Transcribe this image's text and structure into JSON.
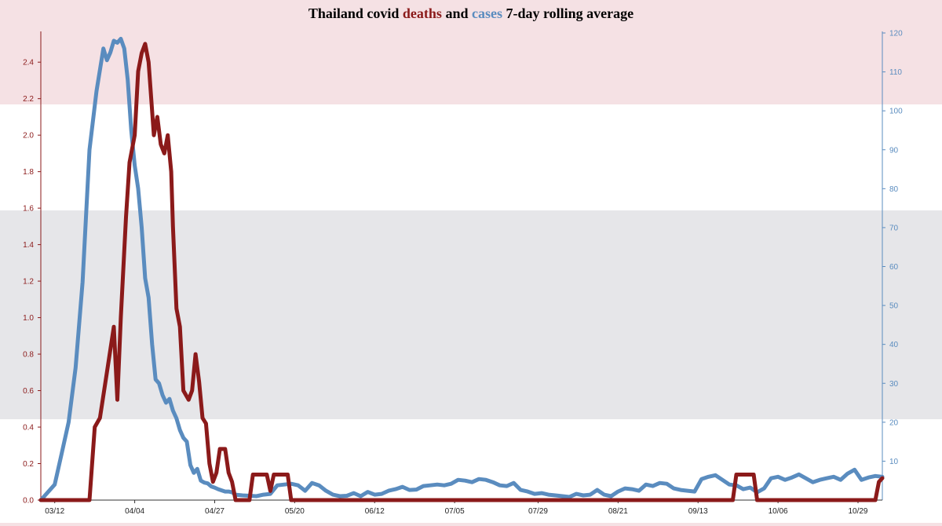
{
  "title": {
    "part1": "Thailand covid ",
    "deaths_word": "deaths",
    "part2": " and ",
    "cases_word": "cases",
    "part3": " 7-day rolling average"
  },
  "colors": {
    "deaths": "#8b1a1a",
    "cases": "#5a8cbf",
    "flag_red": "#f5e1e4",
    "flag_white": "#ffffff",
    "flag_blue": "#e6e6e9"
  },
  "chart_data": {
    "type": "line",
    "title": "Thailand covid deaths and cases 7-day rolling average",
    "xlabel": "",
    "x_tick_labels": [
      "03/12",
      "04/04",
      "04/27",
      "05/20",
      "06/12",
      "07/05",
      "07/29",
      "08/21",
      "09/13",
      "10/06",
      "10/29"
    ],
    "x_tick_days": [
      0,
      23,
      46,
      69,
      92,
      115,
      139,
      162,
      185,
      208,
      231
    ],
    "x_range_days": [
      -4,
      238
    ],
    "left_axis": {
      "series": "deaths",
      "ylim": [
        0,
        2.56
      ],
      "ticks": [
        0.0,
        0.2,
        0.4,
        0.6,
        0.8,
        1.0,
        1.2,
        1.4,
        1.6,
        1.8,
        2.0,
        2.2,
        2.4
      ]
    },
    "right_axis": {
      "series": "cases",
      "ylim": [
        0,
        120
      ],
      "ticks": [
        10,
        20,
        30,
        40,
        50,
        60,
        70,
        80,
        90,
        100,
        110,
        120
      ]
    },
    "series": [
      {
        "name": "deaths",
        "axis": "left",
        "points": [
          [
            -4,
            0
          ],
          [
            10,
            0
          ],
          [
            11.5,
            0.4
          ],
          [
            13,
            0.45
          ],
          [
            15,
            0.7
          ],
          [
            17,
            0.95
          ],
          [
            18,
            0.55
          ],
          [
            19,
            1.0
          ],
          [
            20.5,
            1.55
          ],
          [
            21.5,
            1.85
          ],
          [
            23,
            2.0
          ],
          [
            24,
            2.35
          ],
          [
            25,
            2.45
          ],
          [
            26,
            2.5
          ],
          [
            27,
            2.4
          ],
          [
            28.5,
            2.0
          ],
          [
            29.5,
            2.1
          ],
          [
            30.5,
            1.95
          ],
          [
            31.5,
            1.9
          ],
          [
            32.5,
            2.0
          ],
          [
            33.5,
            1.8
          ],
          [
            34,
            1.5
          ],
          [
            35,
            1.05
          ],
          [
            36,
            0.95
          ],
          [
            37,
            0.6
          ],
          [
            38.5,
            0.55
          ],
          [
            39.5,
            0.6
          ],
          [
            40.5,
            0.8
          ],
          [
            41.5,
            0.65
          ],
          [
            42.5,
            0.45
          ],
          [
            43.5,
            0.42
          ],
          [
            44.5,
            0.2
          ],
          [
            45.5,
            0.1
          ],
          [
            46.5,
            0.15
          ],
          [
            47.5,
            0.28
          ],
          [
            49,
            0.28
          ],
          [
            50,
            0.15
          ],
          [
            51,
            0.1
          ],
          [
            52,
            0.0
          ],
          [
            56,
            0.0
          ],
          [
            57,
            0.14
          ],
          [
            61,
            0.14
          ],
          [
            62,
            0.05
          ],
          [
            63,
            0.14
          ],
          [
            67,
            0.14
          ],
          [
            68,
            0.0
          ],
          [
            195,
            0.0
          ],
          [
            196,
            0.14
          ],
          [
            201,
            0.14
          ],
          [
            202,
            0.0
          ],
          [
            236,
            0.0
          ],
          [
            237,
            0.1
          ],
          [
            238,
            0.12
          ]
        ]
      },
      {
        "name": "cases",
        "axis": "right",
        "points": [
          [
            -4,
            0
          ],
          [
            -2,
            2
          ],
          [
            0,
            4
          ],
          [
            2,
            12
          ],
          [
            4,
            20
          ],
          [
            6,
            34
          ],
          [
            8,
            56
          ],
          [
            10,
            90
          ],
          [
            12,
            105
          ],
          [
            14,
            116
          ],
          [
            15,
            113
          ],
          [
            16,
            115
          ],
          [
            17,
            118
          ],
          [
            18,
            117.5
          ],
          [
            19,
            118.5
          ],
          [
            20,
            116
          ],
          [
            21,
            108
          ],
          [
            22,
            95
          ],
          [
            23,
            86
          ],
          [
            24,
            80
          ],
          [
            25,
            70
          ],
          [
            26,
            57
          ],
          [
            27,
            52
          ],
          [
            28,
            40
          ],
          [
            29,
            31
          ],
          [
            30,
            30
          ],
          [
            31,
            27
          ],
          [
            32,
            25
          ],
          [
            33,
            26
          ],
          [
            34,
            23
          ],
          [
            35,
            21
          ],
          [
            36,
            18
          ],
          [
            37,
            16
          ],
          [
            38,
            15
          ],
          [
            39,
            9
          ],
          [
            40,
            7
          ],
          [
            41,
            8
          ],
          [
            42,
            5
          ],
          [
            43,
            4.5
          ],
          [
            44,
            4.3
          ],
          [
            45,
            3.5
          ],
          [
            46,
            3.2
          ],
          [
            47,
            2.8
          ],
          [
            48,
            2.5
          ],
          [
            49,
            2.2
          ],
          [
            50,
            2.2
          ],
          [
            51,
            2
          ],
          [
            52,
            1.4
          ],
          [
            54,
            1.2
          ],
          [
            56,
            1.1
          ],
          [
            58,
            1.0
          ],
          [
            60,
            1.4
          ],
          [
            62,
            1.6
          ],
          [
            64,
            3.8
          ],
          [
            66,
            4.0
          ],
          [
            68,
            4.2
          ],
          [
            70,
            3.8
          ],
          [
            72,
            2.4
          ],
          [
            74,
            4.4
          ],
          [
            76,
            3.8
          ],
          [
            78,
            2.4
          ],
          [
            80,
            1.4
          ],
          [
            82,
            1.0
          ],
          [
            84,
            1.1
          ],
          [
            86,
            1.8
          ],
          [
            88,
            1.0
          ],
          [
            90,
            2.1
          ],
          [
            92,
            1.4
          ],
          [
            94,
            1.6
          ],
          [
            96,
            2.4
          ],
          [
            98,
            2.8
          ],
          [
            100,
            3.4
          ],
          [
            102,
            2.6
          ],
          [
            104,
            2.7
          ],
          [
            106,
            3.6
          ],
          [
            108,
            3.8
          ],
          [
            110,
            4.0
          ],
          [
            112,
            3.8
          ],
          [
            114,
            4.2
          ],
          [
            116,
            5.2
          ],
          [
            118,
            5.0
          ],
          [
            120,
            4.6
          ],
          [
            122,
            5.4
          ],
          [
            124,
            5.2
          ],
          [
            126,
            4.6
          ],
          [
            128,
            3.8
          ],
          [
            130,
            3.6
          ],
          [
            132,
            4.4
          ],
          [
            134,
            2.6
          ],
          [
            136,
            2.2
          ],
          [
            138,
            1.6
          ],
          [
            140,
            1.8
          ],
          [
            142,
            1.4
          ],
          [
            144,
            1.2
          ],
          [
            146,
            1.0
          ],
          [
            148,
            0.8
          ],
          [
            150,
            1.6
          ],
          [
            152,
            1.2
          ],
          [
            154,
            1.4
          ],
          [
            156,
            2.6
          ],
          [
            158,
            1.4
          ],
          [
            160,
            1.0
          ],
          [
            162,
            2.2
          ],
          [
            164,
            3.0
          ],
          [
            166,
            2.8
          ],
          [
            168,
            2.4
          ],
          [
            170,
            4.0
          ],
          [
            172,
            3.6
          ],
          [
            174,
            4.4
          ],
          [
            176,
            4.2
          ],
          [
            178,
            3.0
          ],
          [
            180,
            2.6
          ],
          [
            182,
            2.4
          ],
          [
            184,
            2.2
          ],
          [
            186,
            5.4
          ],
          [
            188,
            6.0
          ],
          [
            190,
            6.4
          ],
          [
            192,
            5.2
          ],
          [
            194,
            4.0
          ],
          [
            196,
            3.8
          ],
          [
            198,
            2.8
          ],
          [
            200,
            3.2
          ],
          [
            202,
            2.0
          ],
          [
            204,
            3.0
          ],
          [
            206,
            5.6
          ],
          [
            208,
            6.0
          ],
          [
            210,
            5.2
          ],
          [
            212,
            5.8
          ],
          [
            214,
            6.6
          ],
          [
            216,
            5.6
          ],
          [
            218,
            4.6
          ],
          [
            220,
            5.2
          ],
          [
            222,
            5.6
          ],
          [
            224,
            6.0
          ],
          [
            226,
            5.2
          ],
          [
            228,
            6.8
          ],
          [
            230,
            7.8
          ],
          [
            232,
            5.2
          ],
          [
            234,
            5.8
          ],
          [
            236,
            6.2
          ],
          [
            238,
            6.0
          ]
        ]
      }
    ],
    "grid": false,
    "legend": "in-title"
  }
}
